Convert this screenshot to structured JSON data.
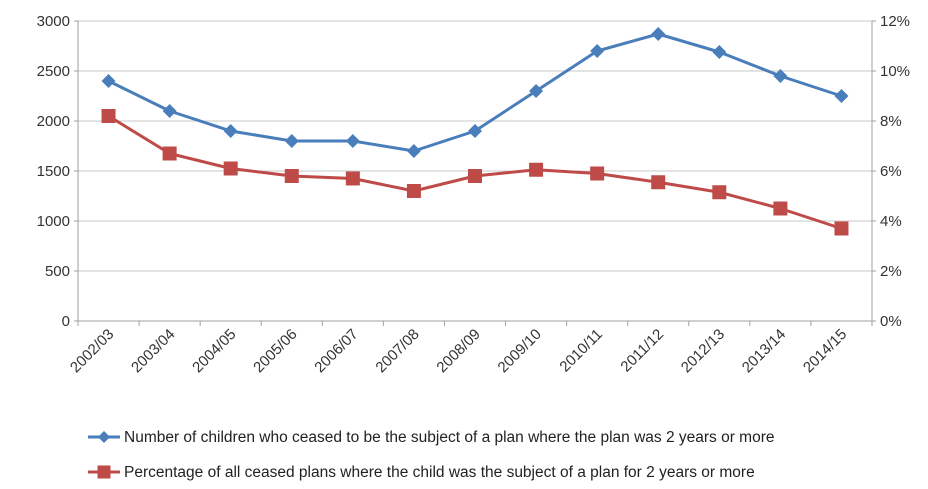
{
  "chart_data": {
    "type": "line",
    "title": "",
    "xlabel": "",
    "ylabel": "",
    "categories": [
      "2002/03",
      "2003/04",
      "2004/05",
      "2005/06",
      "2006/07",
      "2007/08",
      "2008/09",
      "2009/10",
      "2010/11",
      "2011/12",
      "2012/13",
      "2013/14",
      "2014/15"
    ],
    "y_left": {
      "min": 0,
      "max": 3000,
      "step": 500,
      "ticks": [
        "0",
        "500",
        "1000",
        "1500",
        "2000",
        "2500",
        "3000"
      ]
    },
    "y_right": {
      "min": 0,
      "max": 12,
      "step": 2,
      "ticks": [
        "0%",
        "2%",
        "4%",
        "6%",
        "8%",
        "10%",
        "12%"
      ]
    },
    "grid": true,
    "legend_position": "bottom",
    "series": [
      {
        "name": "Number of children who ceased to be the subject of a plan where the plan was 2 years or more",
        "axis": "left",
        "marker": "diamond",
        "color": "#4a7ebb",
        "values": [
          2400,
          2100,
          1900,
          1800,
          1800,
          1700,
          1900,
          2300,
          2700,
          2870,
          2690,
          2450,
          2250
        ]
      },
      {
        "name": "Percentage of all ceased plans where the child was the subject of a plan for 2 years or more",
        "axis": "right",
        "marker": "square",
        "color": "#be4b48",
        "values": [
          8.2,
          6.7,
          6.1,
          5.8,
          5.7,
          5.2,
          5.8,
          6.05,
          5.9,
          5.55,
          5.15,
          4.5,
          3.7
        ]
      }
    ]
  }
}
